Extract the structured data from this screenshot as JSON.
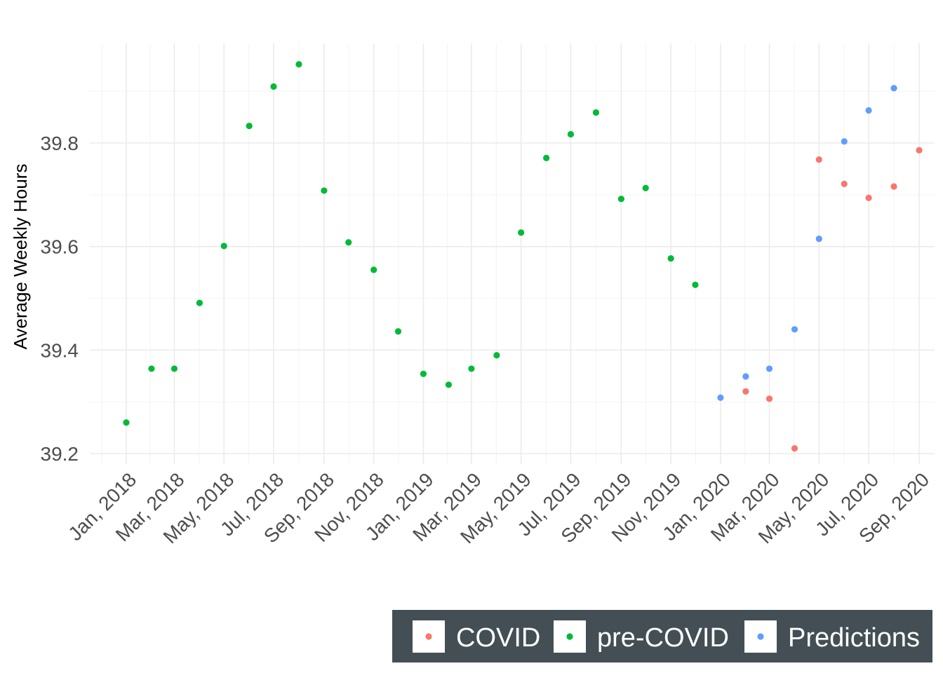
{
  "chart_data": {
    "type": "scatter",
    "title": "",
    "xlabel": "",
    "ylabel": "Average Weekly Hours",
    "x_ticks": [
      "Jan, 2018",
      "Mar, 2018",
      "May, 2018",
      "Jul, 2018",
      "Sep, 2018",
      "Nov, 2018",
      "Jan, 2019",
      "Mar, 2019",
      "May, 2019",
      "Jul, 2019",
      "Sep, 2019",
      "Nov, 2019",
      "Jan, 2020",
      "Mar, 2020",
      "May, 2020",
      "Jul, 2020",
      "Sep, 2020"
    ],
    "x_tick_dates": [
      "2018-01-01",
      "2018-03-01",
      "2018-05-01",
      "2018-07-01",
      "2018-09-01",
      "2018-11-01",
      "2019-01-01",
      "2019-03-01",
      "2019-05-01",
      "2019-07-01",
      "2019-09-01",
      "2019-11-01",
      "2020-01-01",
      "2020-03-01",
      "2020-05-01",
      "2020-07-01",
      "2020-09-01"
    ],
    "xlim": [
      "2017-12-01",
      "2020-09-01"
    ],
    "y_ticks": [
      39.2,
      39.4,
      39.6,
      39.8
    ],
    "ylim": [
      39.17,
      39.98
    ],
    "grid": true,
    "legend_position": "bottom-right",
    "series": [
      {
        "name": "COVID",
        "color": "#F8766D",
        "points": [
          {
            "x": "2020-02-01",
            "y": 39.32
          },
          {
            "x": "2020-03-01",
            "y": 39.306
          },
          {
            "x": "2020-04-01",
            "y": 39.21
          },
          {
            "x": "2020-05-01",
            "y": 39.768
          },
          {
            "x": "2020-06-01",
            "y": 39.721
          },
          {
            "x": "2020-07-01",
            "y": 39.694
          },
          {
            "x": "2020-08-01",
            "y": 39.716
          },
          {
            "x": "2020-09-01",
            "y": 39.786
          }
        ]
      },
      {
        "name": "pre-COVID",
        "color": "#00BA38",
        "points": [
          {
            "x": "2018-01-01",
            "y": 39.26
          },
          {
            "x": "2018-02-01",
            "y": 39.364
          },
          {
            "x": "2018-03-01",
            "y": 39.364
          },
          {
            "x": "2018-04-01",
            "y": 39.491
          },
          {
            "x": "2018-05-01",
            "y": 39.601
          },
          {
            "x": "2018-06-01",
            "y": 39.833
          },
          {
            "x": "2018-07-01",
            "y": 39.909
          },
          {
            "x": "2018-08-01",
            "y": 39.952
          },
          {
            "x": "2018-09-01",
            "y": 39.708
          },
          {
            "x": "2018-10-01",
            "y": 39.608
          },
          {
            "x": "2018-11-01",
            "y": 39.555
          },
          {
            "x": "2018-12-01",
            "y": 39.436
          },
          {
            "x": "2019-01-01",
            "y": 39.354
          },
          {
            "x": "2019-02-01",
            "y": 39.333
          },
          {
            "x": "2019-03-01",
            "y": 39.364
          },
          {
            "x": "2019-04-01",
            "y": 39.39
          },
          {
            "x": "2019-05-01",
            "y": 39.627
          },
          {
            "x": "2019-06-01",
            "y": 39.771
          },
          {
            "x": "2019-07-01",
            "y": 39.817
          },
          {
            "x": "2019-08-01",
            "y": 39.859
          },
          {
            "x": "2019-09-01",
            "y": 39.692
          },
          {
            "x": "2019-10-01",
            "y": 39.713
          },
          {
            "x": "2019-11-01",
            "y": 39.577
          },
          {
            "x": "2019-12-01",
            "y": 39.526
          }
        ]
      },
      {
        "name": "Predictions",
        "color": "#619CFF",
        "points": [
          {
            "x": "2020-01-01",
            "y": 39.308
          },
          {
            "x": "2020-02-01",
            "y": 39.349
          },
          {
            "x": "2020-03-01",
            "y": 39.364
          },
          {
            "x": "2020-04-01",
            "y": 39.44
          },
          {
            "x": "2020-05-01",
            "y": 39.615
          },
          {
            "x": "2020-06-01",
            "y": 39.803
          },
          {
            "x": "2020-07-01",
            "y": 39.863
          },
          {
            "x": "2020-08-01",
            "y": 39.906
          }
        ]
      }
    ]
  },
  "legend": {
    "background": "#434F54",
    "items": [
      "COVID",
      "pre-COVID",
      "Predictions"
    ]
  }
}
